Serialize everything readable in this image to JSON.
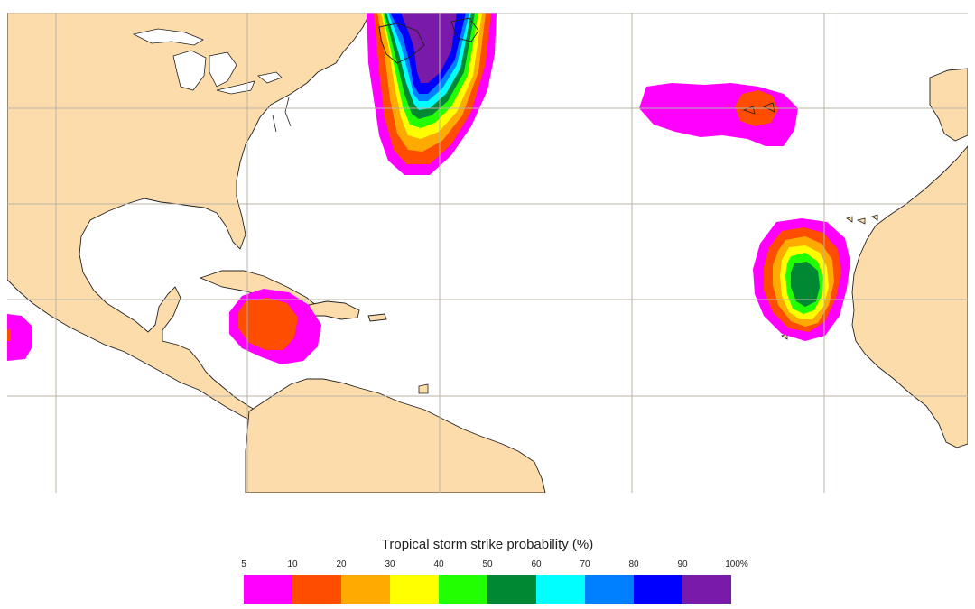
{
  "legend": {
    "title": "Tropical storm strike probability (%)",
    "ticks": [
      "5",
      "10",
      "20",
      "30",
      "40",
      "50",
      "60",
      "70",
      "80",
      "90",
      "100%"
    ],
    "colors": [
      "#ff00ff",
      "#ff4d00",
      "#ffaa00",
      "#ffff00",
      "#22ff00",
      "#008833",
      "#00ffff",
      "#0080ff",
      "#0000ff",
      "#7a1aaa"
    ]
  },
  "map_colors": {
    "land": "#fddcab",
    "ocean": "#ffffff",
    "coast": "#222222",
    "grid": "#b8b3a5"
  }
}
